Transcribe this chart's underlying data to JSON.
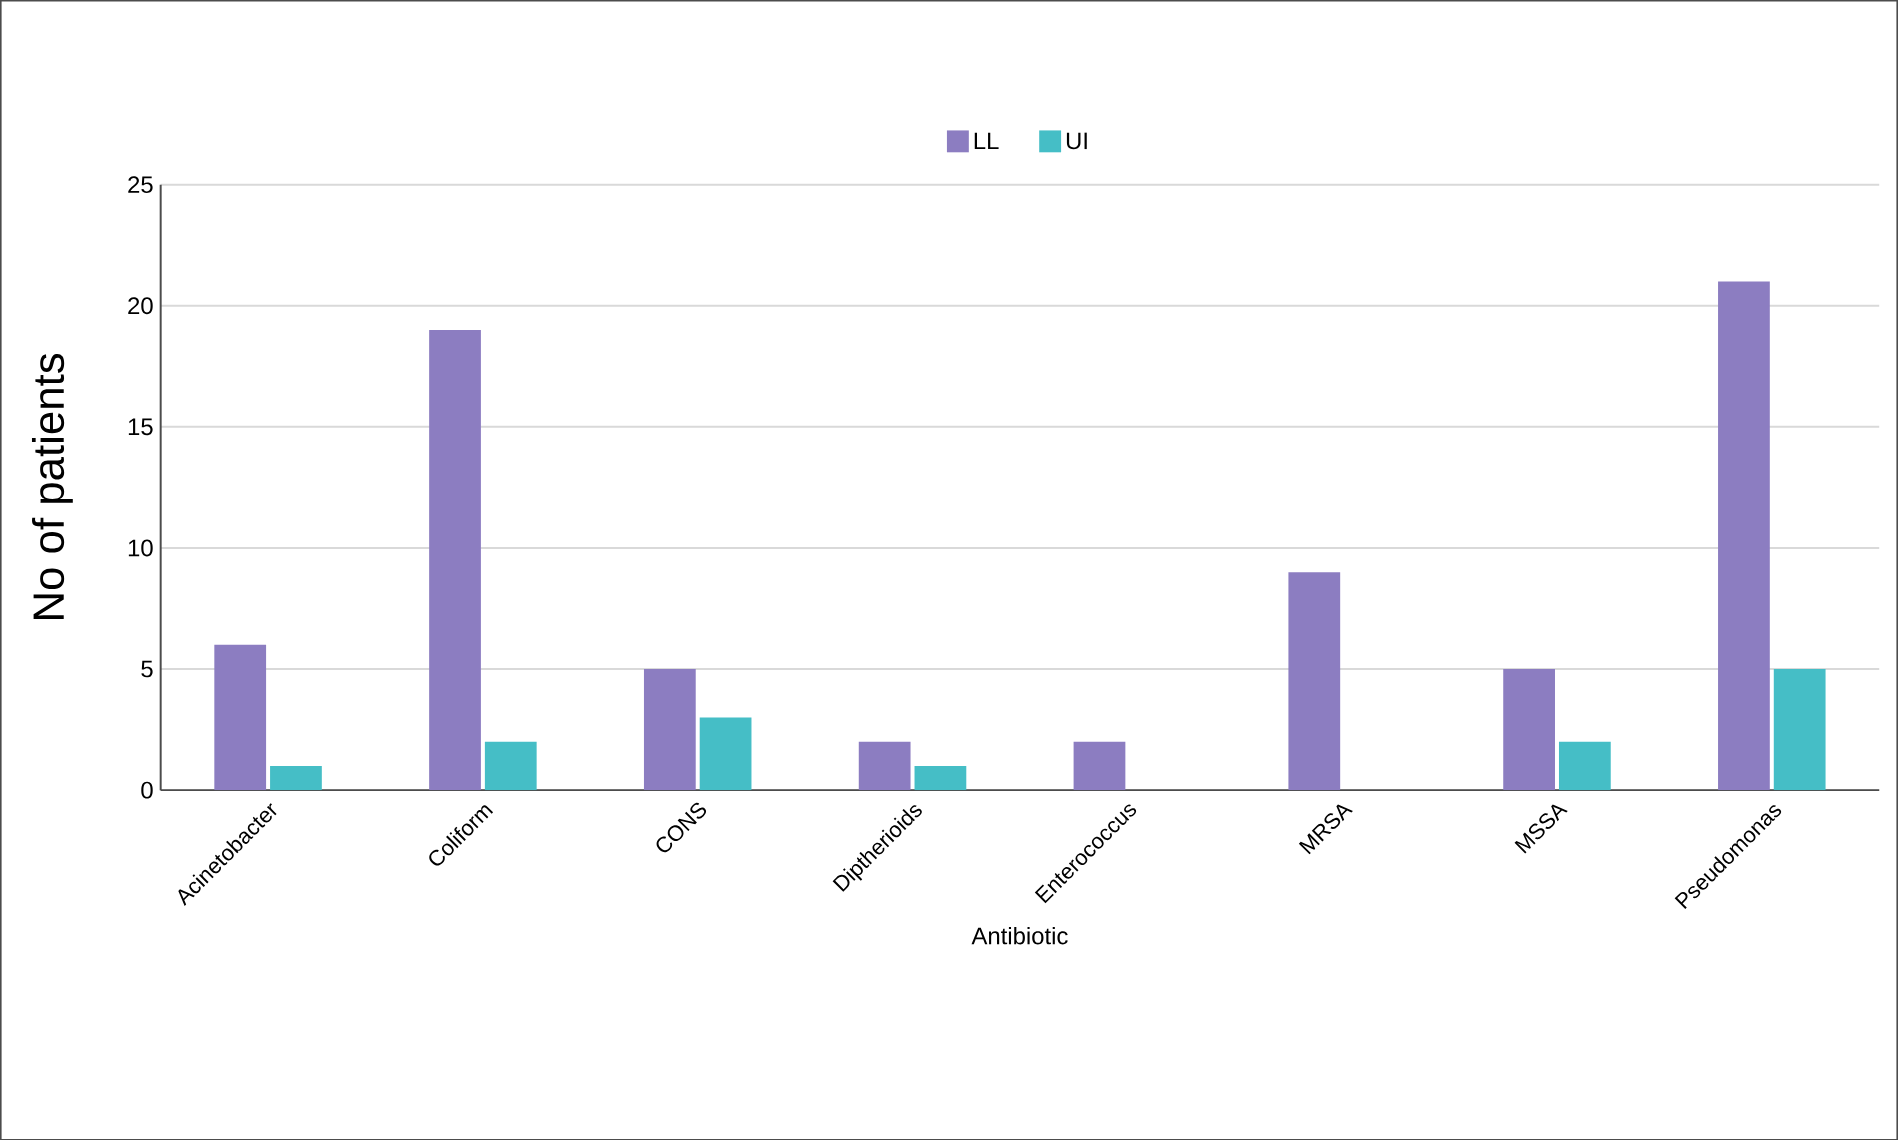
{
  "chart_data": {
    "type": "bar",
    "xlabel": "Antibiotic",
    "ylabel": "No of patients",
    "categories": [
      "Acinetobacter",
      "Coliform",
      "CONS",
      "Diptherioids",
      "Enterococcus",
      "MRSA",
      "MSSA",
      "Pseudomonas"
    ],
    "series": [
      {
        "name": "LL",
        "color": "#8c7dc1",
        "values": [
          6,
          19,
          5,
          2,
          2,
          9,
          5,
          21
        ]
      },
      {
        "name": "UI",
        "color": "#45bec6",
        "values": [
          1,
          2,
          3,
          1,
          0,
          0,
          2,
          5
        ]
      }
    ],
    "ylim": [
      0,
      25
    ],
    "yticks": [
      0,
      5,
      10,
      15,
      20,
      25
    ],
    "grid": "y",
    "legend": "top"
  }
}
